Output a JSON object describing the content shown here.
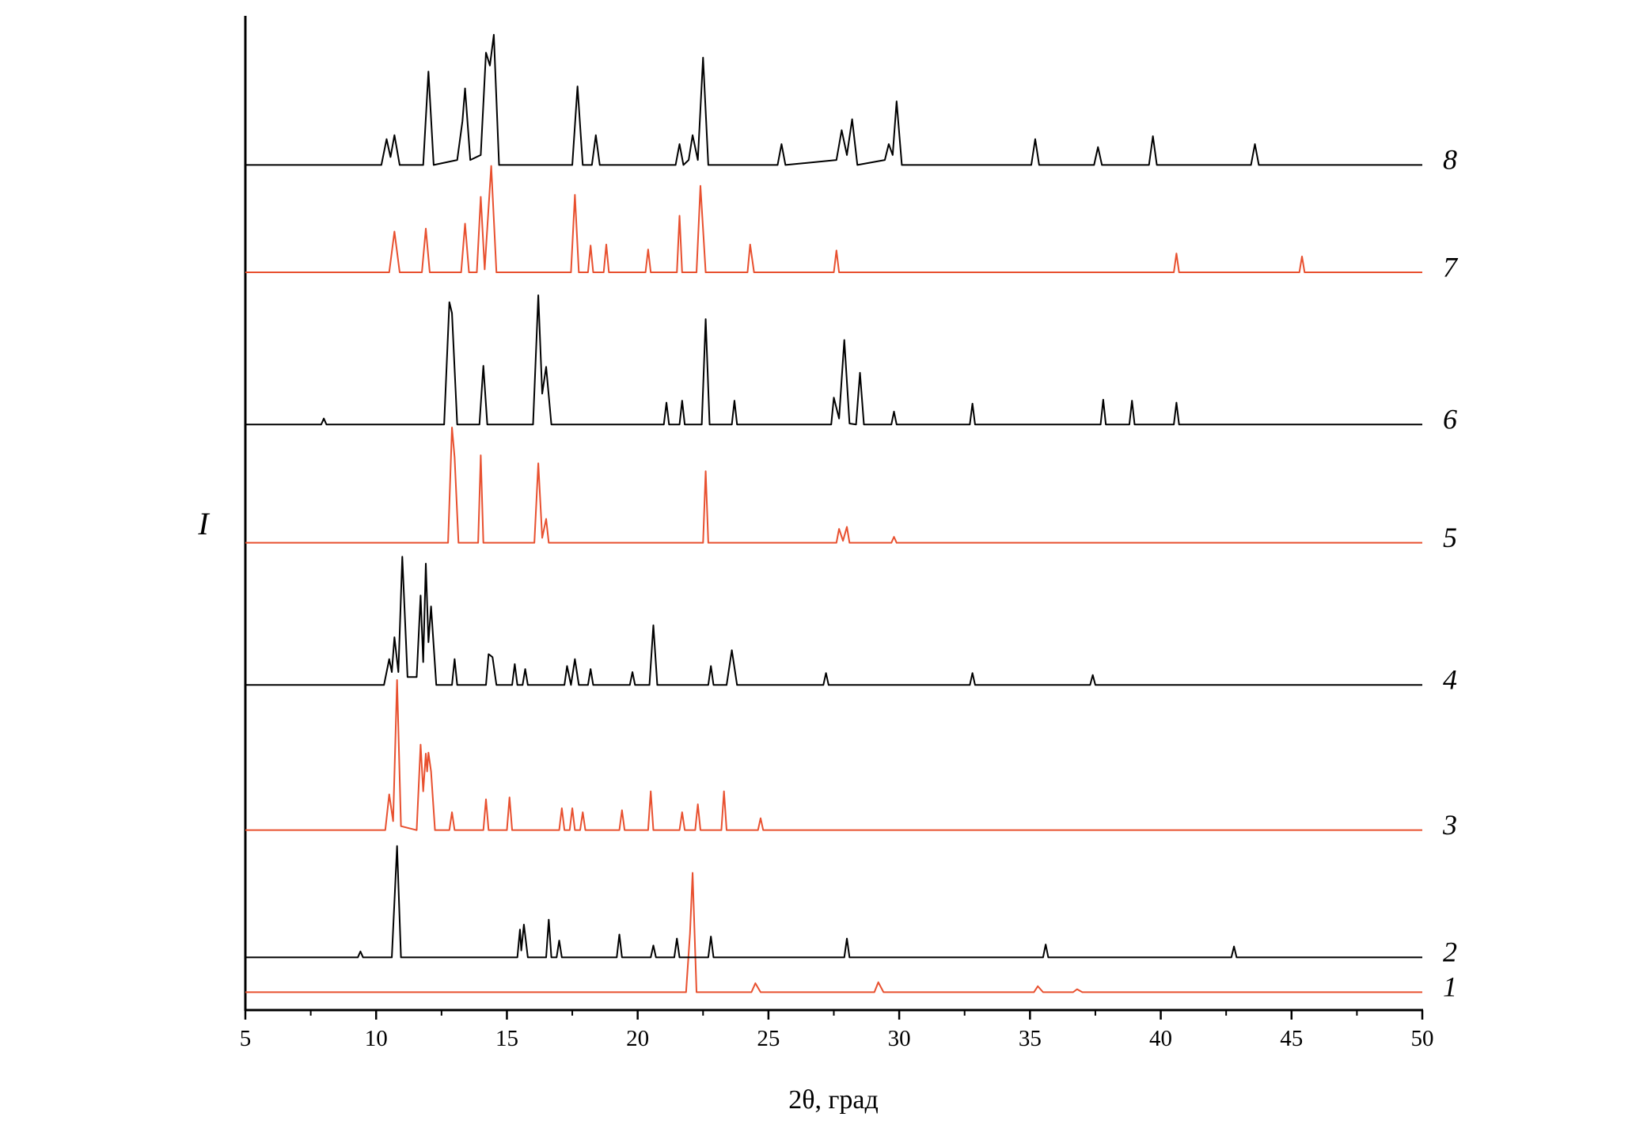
{
  "chart_data": {
    "type": "line",
    "xlabel": "2θ, град",
    "ylabel": "I",
    "xlim": [
      5,
      50
    ],
    "xticks": [
      5,
      10,
      15,
      20,
      25,
      30,
      35,
      40,
      45,
      50
    ],
    "ylim": [
      0,
      100
    ],
    "series": [
      {
        "name": "1",
        "color": "#e8502f",
        "x": [
          5,
          21.85,
          22.0,
          22.1,
          22.25,
          24.35,
          24.5,
          24.7,
          29.05,
          29.2,
          29.4,
          35.15,
          35.3,
          35.5,
          36.65,
          36.8,
          37.0,
          50
        ],
        "values": [
          1.8,
          1.8,
          7.7,
          13.8,
          1.8,
          1.8,
          2.7,
          1.8,
          1.8,
          2.8,
          1.8,
          1.8,
          2.4,
          1.8,
          1.8,
          2.1,
          1.8,
          1.8
        ]
      },
      {
        "name": "2",
        "color": "#000000",
        "x": [
          5,
          9.3,
          9.4,
          9.5,
          10.6,
          10.8,
          10.95,
          15.4,
          15.5,
          15.55,
          15.65,
          15.8,
          16.5,
          16.6,
          16.7,
          16.9,
          17.0,
          17.1,
          19.2,
          19.3,
          19.4,
          20.5,
          20.6,
          20.7,
          21.4,
          21.5,
          21.6,
          22.7,
          22.8,
          22.9,
          27.9,
          28.0,
          28.1,
          35.5,
          35.6,
          35.7,
          42.7,
          42.8,
          42.9,
          50
        ],
        "values": [
          5.3,
          5.3,
          5.9,
          5.3,
          5.3,
          16.5,
          5.3,
          5.3,
          8.1,
          6,
          8.6,
          5.3,
          5.3,
          9.1,
          5.3,
          5.3,
          7.0,
          5.3,
          5.3,
          7.6,
          5.3,
          5.3,
          6.5,
          5.3,
          5.3,
          7.2,
          5.3,
          5.3,
          7.4,
          5.3,
          5.3,
          7.2,
          5.3,
          5.3,
          6.6,
          5.3,
          5.3,
          6.4,
          5.3,
          5.3
        ]
      },
      {
        "name": "3",
        "color": "#e8502f",
        "x": [
          5,
          10.35,
          10.5,
          10.65,
          10.8,
          10.95,
          11.55,
          11.7,
          11.8,
          11.9,
          11.95,
          12.0,
          12.1,
          12.25,
          12.8,
          12.9,
          13.0,
          14.1,
          14.2,
          14.3,
          15.0,
          15.1,
          15.2,
          17.0,
          17.1,
          17.2,
          17.4,
          17.5,
          17.6,
          17.8,
          17.9,
          18.0,
          19.3,
          19.4,
          19.5,
          20.4,
          20.5,
          20.6,
          21.6,
          21.7,
          21.8,
          22.2,
          22.3,
          22.4,
          23.2,
          23.3,
          23.4,
          24.6,
          24.7,
          24.8,
          50
        ],
        "values": [
          18.1,
          18.1,
          21.7,
          19,
          33.2,
          18.5,
          18.1,
          26.7,
          22,
          25.8,
          24,
          25.9,
          24.0,
          18.1,
          18.1,
          19.9,
          18.1,
          18.1,
          21.2,
          18.1,
          18.1,
          21.4,
          18.1,
          18.1,
          20.3,
          18.1,
          18.1,
          20.3,
          18.1,
          18.1,
          19.9,
          18.1,
          18.1,
          20.1,
          18.1,
          18.1,
          22.0,
          18.1,
          18.1,
          19.9,
          18.1,
          18.1,
          20.7,
          18.1,
          18.1,
          22.0,
          18.1,
          18.1,
          19.3,
          18.1,
          18.1
        ]
      },
      {
        "name": "4",
        "color": "#000000",
        "x": [
          5,
          10.3,
          10.5,
          10.6,
          10.7,
          10.85,
          11.0,
          11.2,
          11.55,
          11.7,
          11.8,
          11.9,
          12.0,
          12.1,
          12.3,
          12.9,
          13.0,
          13.1,
          14.2,
          14.3,
          14.45,
          14.6,
          15.2,
          15.3,
          15.4,
          15.6,
          15.7,
          15.8,
          17.2,
          17.3,
          17.45,
          17.6,
          17.75,
          18.1,
          18.2,
          18.3,
          19.7,
          19.8,
          19.9,
          20.45,
          20.6,
          20.75,
          22.7,
          22.8,
          22.9,
          23.4,
          23.6,
          23.8,
          27.1,
          27.2,
          27.3,
          32.7,
          32.8,
          32.9,
          37.3,
          37.4,
          37.5,
          50
        ],
        "values": [
          32.7,
          32.7,
          35.3,
          34,
          37.5,
          34,
          45.6,
          33.5,
          33.5,
          41.7,
          35,
          44.9,
          37,
          40.6,
          32.7,
          32.7,
          35.3,
          32.7,
          32.7,
          35.8,
          35.5,
          32.7,
          32.7,
          34.8,
          32.7,
          32.7,
          34.3,
          32.7,
          32.7,
          34.6,
          32.7,
          35.3,
          32.7,
          32.7,
          34.3,
          32.7,
          32.7,
          34.0,
          32.7,
          32.7,
          38.7,
          32.7,
          32.7,
          34.6,
          32.7,
          32.7,
          36.2,
          32.7,
          32.7,
          33.9,
          32.7,
          32.7,
          33.9,
          32.7,
          32.7,
          33.7,
          32.7,
          32.7
        ]
      },
      {
        "name": "5",
        "color": "#e8502f",
        "x": [
          5,
          12.75,
          12.9,
          13.0,
          13.15,
          13.9,
          14.0,
          14.1,
          16.05,
          16.2,
          16.35,
          16.5,
          16.6,
          22.5,
          22.6,
          22.7,
          27.6,
          27.7,
          27.85,
          28.0,
          28.1,
          29.7,
          29.8,
          29.9,
          50
        ],
        "values": [
          47,
          47,
          58.6,
          55.6,
          47,
          47,
          55.8,
          47,
          47,
          55.0,
          47.5,
          49.4,
          47,
          47,
          54.2,
          47,
          47,
          48.4,
          47.2,
          48.6,
          47,
          47,
          47.6,
          47,
          47
        ]
      },
      {
        "name": "6",
        "color": "#000000",
        "x": [
          5,
          7.9,
          8.0,
          8.1,
          12.6,
          12.8,
          12.9,
          13.1,
          13.95,
          14.1,
          14.25,
          16.0,
          16.2,
          16.35,
          16.5,
          16.7,
          21.0,
          21.1,
          21.2,
          21.6,
          21.7,
          21.8,
          22.45,
          22.6,
          22.75,
          23.6,
          23.7,
          23.8,
          27.4,
          27.5,
          27.7,
          27.9,
          28.1,
          28.35,
          28.5,
          28.65,
          29.7,
          29.8,
          29.9,
          32.7,
          32.8,
          32.9,
          37.7,
          37.8,
          37.9,
          38.8,
          38.9,
          39.0,
          40.5,
          40.6,
          40.7,
          50
        ],
        "values": [
          58.9,
          58.9,
          59.5,
          58.9,
          58.9,
          71.2,
          70.1,
          58.9,
          58.9,
          64.8,
          58.9,
          58.9,
          71.9,
          62,
          64.7,
          58.9,
          58.9,
          61.1,
          58.9,
          58.9,
          61.3,
          58.9,
          58.9,
          69.5,
          58.9,
          58.9,
          61.3,
          58.9,
          58.9,
          61.6,
          59.5,
          67.4,
          59,
          58.9,
          64.1,
          58.9,
          58.9,
          60.2,
          58.9,
          58.9,
          61.0,
          58.9,
          58.9,
          61.4,
          58.9,
          58.9,
          61.3,
          58.9,
          58.9,
          61.1,
          58.9,
          58.9
        ]
      },
      {
        "name": "7",
        "color": "#e8502f",
        "x": [
          5,
          10.5,
          10.7,
          10.9,
          11.75,
          11.9,
          12.05,
          13.25,
          13.4,
          13.55,
          13.85,
          14.0,
          14.15,
          14.4,
          14.6,
          17.45,
          17.6,
          17.75,
          18.1,
          18.2,
          18.3,
          18.7,
          18.8,
          18.9,
          20.3,
          20.4,
          20.5,
          21.5,
          21.6,
          21.7,
          22.25,
          22.4,
          22.6,
          24.2,
          24.3,
          24.45,
          27.5,
          27.6,
          27.7,
          40.5,
          40.6,
          40.7,
          45.3,
          45.4,
          45.5,
          50
        ],
        "values": [
          74.2,
          74.2,
          78.3,
          74.2,
          74.2,
          78.6,
          74.2,
          74.2,
          79.1,
          74.2,
          74.2,
          81.8,
          74.5,
          84.9,
          74.2,
          74.2,
          82.0,
          74.2,
          74.2,
          76.9,
          74.2,
          74.2,
          77.0,
          74.2,
          74.2,
          76.5,
          74.2,
          74.2,
          79.9,
          74.2,
          74.2,
          82.9,
          74.2,
          74.2,
          77.0,
          74.2,
          74.2,
          76.4,
          74.2,
          74.2,
          76.1,
          74.2,
          74.2,
          75.8,
          74.2,
          74.2
        ]
      },
      {
        "name": "8",
        "color": "#000000",
        "x": [
          5,
          10.2,
          10.4,
          10.55,
          10.7,
          10.9,
          11.8,
          12.0,
          12.2,
          13.1,
          13.3,
          13.4,
          13.6,
          14.0,
          14.2,
          14.35,
          14.5,
          14.7,
          17.5,
          17.7,
          17.9,
          18.25,
          18.4,
          18.55,
          21.45,
          21.6,
          21.75,
          21.95,
          22.1,
          22.3,
          22.5,
          22.7,
          25.35,
          25.5,
          25.65,
          27.6,
          27.8,
          28.0,
          28.2,
          28.4,
          29.45,
          29.6,
          29.75,
          29.9,
          30.1,
          35.05,
          35.2,
          35.35,
          37.45,
          37.6,
          37.75,
          39.55,
          39.7,
          39.85,
          43.45,
          43.6,
          43.75,
          50
        ],
        "values": [
          85,
          85,
          87.6,
          85.8,
          88.0,
          85,
          85,
          94.4,
          85,
          85.5,
          89.4,
          92.7,
          85.5,
          86,
          96.3,
          95,
          98.1,
          85,
          85,
          92.9,
          85,
          85,
          88.0,
          85,
          85,
          87.1,
          85,
          85.5,
          88.0,
          85.5,
          95.8,
          85,
          85,
          87.1,
          85,
          85.5,
          88.5,
          86,
          89.6,
          85,
          85.5,
          87.1,
          86,
          91.4,
          85,
          85,
          87.6,
          85,
          85,
          86.8,
          85,
          85,
          87.9,
          85,
          85,
          87.1,
          85,
          85
        ]
      }
    ]
  }
}
